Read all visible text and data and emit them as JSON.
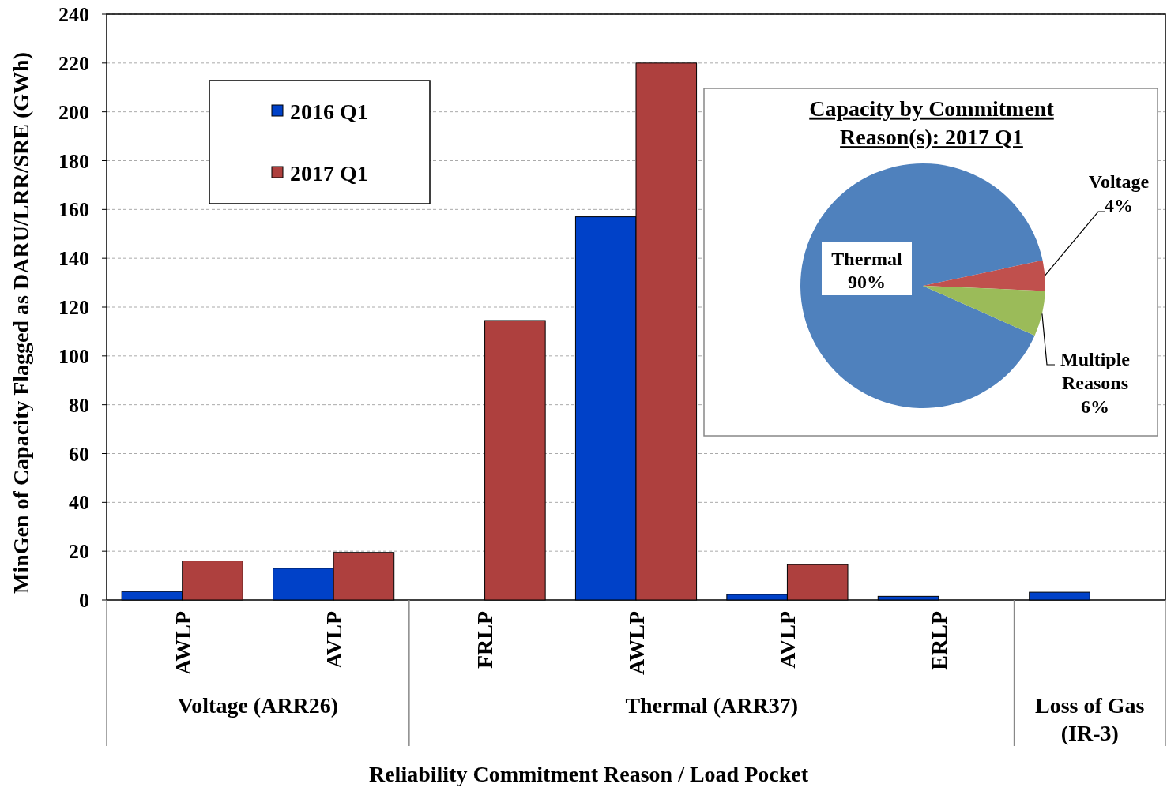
{
  "chart_data": [
    {
      "type": "bar",
      "xlabel": "Reliability Commitment Reason / Load Pocket",
      "ylabel": "MinGen of Capacity Flagged as DARU/LRR/SRE (GWh)",
      "categories": [
        "AWLP",
        "AVLP",
        "FRLP",
        "AWLP",
        "AVLP",
        "ERLP",
        null
      ],
      "series": [
        {
          "name": "2016 Q1",
          "color": "#0041c8",
          "values": [
            3.5,
            13,
            0,
            157,
            2.3,
            1.5,
            3.2
          ]
        },
        {
          "name": "2017 Q1",
          "color": "#ae403e",
          "values": [
            16,
            19.5,
            114.5,
            220,
            14.5,
            0,
            0
          ]
        }
      ],
      "ylim": [
        0,
        240
      ],
      "yticks": [
        0,
        20,
        40,
        60,
        80,
        100,
        120,
        140,
        160,
        180,
        200,
        220,
        240
      ],
      "grid": "y",
      "legend": "top left",
      "annotations": [
        "Voltage (ARR26)",
        "Thermal (ARR37)",
        "Loss of Gas (IR-3)"
      ]
    },
    {
      "type": "pie",
      "title": "Capacity by Commitment Reason(s): 2017 Q1",
      "categories": [
        "Thermal",
        "Voltage",
        "Multiple Reasons"
      ],
      "values": [
        90,
        4,
        6
      ],
      "value_labels": [
        "90%",
        "4%",
        "6%"
      ],
      "colors": [
        "#4f81bd",
        "#c0504d",
        "#9bbb59"
      ]
    }
  ]
}
